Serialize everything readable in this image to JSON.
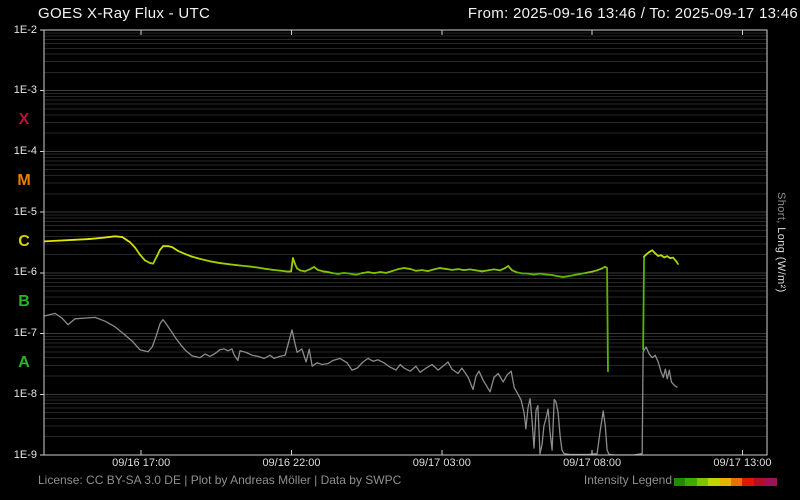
{
  "header": {
    "title": "GOES X-Ray Flux - UTC",
    "range_label": "From: 2025-09-16 13:46  /  To: 2025-09-17 13:46"
  },
  "footer": {
    "license": "License: CC BY-SA 3.0 DE | Plot by Andreas Möller | Data by SWPC",
    "legend_label": "Intensity Legend"
  },
  "axes": {
    "y_tick_labels": [
      "1E-2",
      "1E-3",
      "1E-4",
      "1E-5",
      "1E-6",
      "1E-7",
      "1E-8",
      "1E-9"
    ],
    "class_labels": [
      {
        "text": "X",
        "color": "#b5123c"
      },
      {
        "text": "M",
        "color": "#ee7f00"
      },
      {
        "text": "C",
        "color": "#d2d200"
      },
      {
        "text": "B",
        "color": "#2ab32a"
      },
      {
        "text": "A",
        "color": "#2ab32a"
      }
    ],
    "x_ticks": [
      {
        "label": "09/16 17:00",
        "hours": 3.233
      },
      {
        "label": "09/16 22:00",
        "hours": 8.233
      },
      {
        "label": "09/17 03:00",
        "hours": 13.233
      },
      {
        "label": "09/17 08:00",
        "hours": 18.233
      },
      {
        "label": "09/17 13:00",
        "hours": 23.233
      }
    ],
    "right_label_parts": [
      {
        "text": "Short, ",
        "color": "#8f8f8f"
      },
      {
        "text": "Long (W/m²)",
        "color": "#dcdcdc"
      }
    ]
  },
  "legend_colors": [
    "#1f8c00",
    "#3daa00",
    "#7cc400",
    "#c2d400",
    "#e6b400",
    "#e87200",
    "#dc1800",
    "#b30f24",
    "#a01257"
  ],
  "chart_data": {
    "type": "line",
    "title": "GOES X-Ray Flux - UTC",
    "x_unit": "hours since 2025-09-16 13:46 UTC",
    "x_range": [
      0,
      24.05
    ],
    "y_scale": "log",
    "y_range": [
      1e-09,
      0.01
    ],
    "grid": "horizontal log minor+major",
    "series": [
      {
        "name": "Long",
        "color_mode": "intensity-colormap",
        "colormap": [
          {
            "max_log": -7.0,
            "color": "#2d9e00"
          },
          {
            "max_log": -6.0,
            "color": "#5ab400"
          },
          {
            "max_log": -5.88,
            "color": "#84c400"
          },
          {
            "max_log": -5.76,
            "color": "#a2d000"
          },
          {
            "max_log": -5.62,
            "color": "#c0da00"
          },
          {
            "max_log": -5.48,
            "color": "#d4e000"
          },
          {
            "max_log": 0,
            "color": "#e2e600"
          }
        ],
        "points": [
          [
            0,
            3.3e-06
          ],
          [
            0.5,
            3.4e-06
          ],
          [
            1.0,
            3.5e-06
          ],
          [
            1.5,
            3.6e-06
          ],
          [
            2.0,
            3.8e-06
          ],
          [
            2.36,
            4e-06
          ],
          [
            2.6,
            3.9e-06
          ],
          [
            2.86,
            3.2e-06
          ],
          [
            3.03,
            2.6e-06
          ],
          [
            3.19,
            2e-06
          ],
          [
            3.36,
            1.6e-06
          ],
          [
            3.53,
            1.45e-06
          ],
          [
            3.63,
            1.42e-06
          ],
          [
            3.76,
            1.9e-06
          ],
          [
            3.86,
            2.4e-06
          ],
          [
            3.96,
            2.75e-06
          ],
          [
            4.13,
            2.75e-06
          ],
          [
            4.26,
            2.65e-06
          ],
          [
            4.46,
            2.3e-06
          ],
          [
            4.69,
            2.05e-06
          ],
          [
            4.92,
            1.85e-06
          ],
          [
            5.19,
            1.7e-06
          ],
          [
            5.52,
            1.55e-06
          ],
          [
            5.85,
            1.45e-06
          ],
          [
            6.19,
            1.38e-06
          ],
          [
            6.52,
            1.32e-06
          ],
          [
            6.85,
            1.27e-06
          ],
          [
            7.12,
            1.22e-06
          ],
          [
            7.39,
            1.16e-06
          ],
          [
            7.62,
            1.12e-06
          ],
          [
            7.85,
            1.09e-06
          ],
          [
            8.12,
            1.05e-06
          ],
          [
            8.22,
            1.06e-06
          ],
          [
            8.28,
            1.75e-06
          ],
          [
            8.35,
            1.4e-06
          ],
          [
            8.42,
            1.18e-06
          ],
          [
            8.52,
            1.1e-06
          ],
          [
            8.68,
            1.06e-06
          ],
          [
            8.85,
            1.15e-06
          ],
          [
            8.98,
            1.25e-06
          ],
          [
            9.11,
            1.12e-06
          ],
          [
            9.28,
            1.06e-06
          ],
          [
            9.45,
            1.03e-06
          ],
          [
            9.61,
            9.9e-07
          ],
          [
            9.78,
            9.6e-07
          ],
          [
            9.98,
            1e-06
          ],
          [
            10.18,
            9.7e-07
          ],
          [
            10.38,
            9.3e-07
          ],
          [
            10.58,
            9.9e-07
          ],
          [
            10.78,
            1.03e-06
          ],
          [
            10.98,
            9.9e-07
          ],
          [
            11.18,
            1.03e-06
          ],
          [
            11.38,
            1e-06
          ],
          [
            11.58,
            1.07e-06
          ],
          [
            11.78,
            1.15e-06
          ],
          [
            11.98,
            1.2e-06
          ],
          [
            12.18,
            1.16e-06
          ],
          [
            12.37,
            1.08e-06
          ],
          [
            12.57,
            1.11e-06
          ],
          [
            12.77,
            1.07e-06
          ],
          [
            12.97,
            1.14e-06
          ],
          [
            13.17,
            1.2e-06
          ],
          [
            13.37,
            1.16e-06
          ],
          [
            13.57,
            1.12e-06
          ],
          [
            13.77,
            1.15e-06
          ],
          [
            13.97,
            1.11e-06
          ],
          [
            14.17,
            1.14e-06
          ],
          [
            14.37,
            1.1e-06
          ],
          [
            14.57,
            1.06e-06
          ],
          [
            14.77,
            1.1e-06
          ],
          [
            14.97,
            1.14e-06
          ],
          [
            15.17,
            1.1e-06
          ],
          [
            15.34,
            1.2e-06
          ],
          [
            15.44,
            1.3e-06
          ],
          [
            15.57,
            1.1e-06
          ],
          [
            15.73,
            1.02e-06
          ],
          [
            15.9,
            9.8e-07
          ],
          [
            16.1,
            9.7e-07
          ],
          [
            16.3,
            9.4e-07
          ],
          [
            16.5,
            9.7e-07
          ],
          [
            16.7,
            9.4e-07
          ],
          [
            16.9,
            9.2e-07
          ],
          [
            17.1,
            8.8e-07
          ],
          [
            17.26,
            8.5e-07
          ],
          [
            17.43,
            8.8e-07
          ],
          [
            17.63,
            9.2e-07
          ],
          [
            17.83,
            9.6e-07
          ],
          [
            18.03,
            1e-06
          ],
          [
            18.23,
            1.05e-06
          ],
          [
            18.4,
            1.1e-06
          ],
          [
            18.56,
            1.18e-06
          ],
          [
            18.66,
            1.26e-06
          ],
          [
            18.73,
            1.2e-06
          ],
          [
            18.76,
            2.4e-08
          ],
          null,
          [
            19.93,
            5.5e-08
          ],
          [
            19.96,
            1.85e-06
          ],
          [
            20.03,
            2e-06
          ],
          [
            20.13,
            2.2e-06
          ],
          [
            20.23,
            2.35e-06
          ],
          [
            20.33,
            2.1e-06
          ],
          [
            20.43,
            1.9e-06
          ],
          [
            20.53,
            1.95e-06
          ],
          [
            20.63,
            1.8e-06
          ],
          [
            20.73,
            1.88e-06
          ],
          [
            20.83,
            1.75e-06
          ],
          [
            20.93,
            1.78e-06
          ],
          [
            21.03,
            1.55e-06
          ],
          [
            21.09,
            1.4e-06
          ]
        ]
      },
      {
        "name": "Short",
        "color": "#8c8c8c",
        "points": [
          [
            0,
            1.95e-07
          ],
          [
            0.37,
            2.15e-07
          ],
          [
            0.6,
            1.8e-07
          ],
          [
            0.8,
            1.4e-07
          ],
          [
            1.03,
            1.75e-07
          ],
          [
            1.36,
            1.8e-07
          ],
          [
            1.7,
            1.85e-07
          ],
          [
            2.03,
            1.6e-07
          ],
          [
            2.36,
            1.3e-07
          ],
          [
            2.69,
            9.5e-08
          ],
          [
            2.96,
            7.3e-08
          ],
          [
            3.19,
            5.4e-08
          ],
          [
            3.46,
            5e-08
          ],
          [
            3.6,
            6e-08
          ],
          [
            3.73,
            9e-08
          ],
          [
            3.86,
            1.45e-07
          ],
          [
            3.96,
            1.7e-07
          ],
          [
            4.06,
            1.45e-07
          ],
          [
            4.2,
            1.15e-07
          ],
          [
            4.36,
            8.7e-08
          ],
          [
            4.56,
            6.4e-08
          ],
          [
            4.72,
            5.2e-08
          ],
          [
            4.92,
            4.3e-08
          ],
          [
            5.19,
            4e-08
          ],
          [
            5.36,
            4.6e-08
          ],
          [
            5.52,
            4.2e-08
          ],
          [
            5.69,
            4.7e-08
          ],
          [
            5.85,
            5.4e-08
          ],
          [
            5.99,
            5.6e-08
          ],
          [
            6.12,
            5.2e-08
          ],
          [
            6.25,
            5.6e-08
          ],
          [
            6.32,
            4.5e-08
          ],
          [
            6.45,
            3.6e-08
          ],
          [
            6.52,
            5.2e-08
          ],
          [
            6.72,
            4.9e-08
          ],
          [
            6.92,
            4.4e-08
          ],
          [
            7.12,
            4.2e-08
          ],
          [
            7.32,
            3.9e-08
          ],
          [
            7.52,
            4.4e-08
          ],
          [
            7.65,
            3.9e-08
          ],
          [
            7.85,
            4.2e-08
          ],
          [
            8.02,
            4.4e-08
          ],
          [
            8.25,
            1.15e-07
          ],
          [
            8.35,
            6.8e-08
          ],
          [
            8.42,
            4.9e-08
          ],
          [
            8.58,
            5.6e-08
          ],
          [
            8.72,
            3.4e-08
          ],
          [
            8.82,
            5.5e-08
          ],
          [
            8.92,
            2.9e-08
          ],
          [
            9.08,
            3.3e-08
          ],
          [
            9.25,
            3.1e-08
          ],
          [
            9.45,
            3.2e-08
          ],
          [
            9.61,
            3.6e-08
          ],
          [
            9.85,
            3.9e-08
          ],
          [
            10.08,
            3.3e-08
          ],
          [
            10.25,
            2.5e-08
          ],
          [
            10.42,
            2.7e-08
          ],
          [
            10.61,
            3.4e-08
          ],
          [
            10.78,
            3.9e-08
          ],
          [
            10.95,
            3.5e-08
          ],
          [
            11.11,
            3.7e-08
          ],
          [
            11.31,
            3.3e-08
          ],
          [
            11.51,
            2.8e-08
          ],
          [
            11.71,
            2.5e-08
          ],
          [
            11.85,
            3.1e-08
          ],
          [
            11.98,
            2.7e-08
          ],
          [
            12.18,
            2.4e-08
          ],
          [
            12.37,
            2.9e-08
          ],
          [
            12.51,
            2.3e-08
          ],
          [
            12.71,
            2.7e-08
          ],
          [
            12.91,
            3.1e-08
          ],
          [
            13.11,
            2.5e-08
          ],
          [
            13.31,
            3e-08
          ],
          [
            13.44,
            3.4e-08
          ],
          [
            13.57,
            2.6e-08
          ],
          [
            13.77,
            2.2e-08
          ],
          [
            13.9,
            2.7e-08
          ],
          [
            14.11,
            1.9e-08
          ],
          [
            14.27,
            1.2e-08
          ],
          [
            14.37,
            2e-08
          ],
          [
            14.47,
            2.4e-08
          ],
          [
            14.61,
            1.7e-08
          ],
          [
            14.84,
            1.1e-08
          ],
          [
            14.97,
            1.9e-08
          ],
          [
            15.11,
            2.2e-08
          ],
          [
            15.27,
            1.6e-08
          ],
          [
            15.41,
            2.1e-08
          ],
          [
            15.54,
            2.4e-08
          ],
          [
            15.64,
            1.3e-08
          ],
          [
            15.77,
            1e-08
          ],
          [
            15.87,
            8e-09
          ],
          [
            15.97,
            5e-09
          ],
          [
            16.03,
            2.7e-09
          ],
          [
            16.1,
            6e-09
          ],
          [
            16.17,
            8.5e-09
          ],
          [
            16.23,
            4e-09
          ],
          [
            16.3,
            1.3e-09
          ],
          [
            16.37,
            5.5e-09
          ],
          [
            16.43,
            6.5e-09
          ],
          [
            16.5,
            1.05e-09
          ],
          [
            16.57,
            1.5e-09
          ],
          [
            16.63,
            3e-09
          ],
          [
            16.7,
            4e-09
          ],
          [
            16.77,
            5.7e-09
          ],
          [
            16.83,
            2.5e-09
          ],
          [
            16.9,
            1.2e-09
          ],
          [
            16.97,
            8.2e-09
          ],
          [
            17.03,
            7.5e-09
          ],
          [
            17.1,
            5e-09
          ],
          [
            17.17,
            2e-09
          ],
          [
            17.23,
            1.2e-09
          ],
          [
            17.3,
            1.05e-09
          ],
          [
            17.5,
            1.02e-09
          ],
          [
            17.8,
            1.02e-09
          ],
          [
            18.1,
            1.02e-09
          ],
          [
            18.4,
            1.05e-09
          ],
          [
            18.5,
            2.5e-09
          ],
          [
            18.6,
            5.3e-09
          ],
          [
            18.67,
            3e-09
          ],
          [
            18.73,
            1.2e-09
          ],
          [
            18.8,
            1.02e-09
          ],
          [
            19.0,
            1e-09
          ],
          [
            19.3,
            1e-09
          ],
          [
            19.6,
            1e-09
          ],
          [
            19.9,
            1.05e-09
          ],
          [
            19.93,
            5e-08
          ],
          [
            20.03,
            6e-08
          ],
          [
            20.13,
            4.6e-08
          ],
          [
            20.23,
            4e-08
          ],
          [
            20.33,
            4.4e-08
          ],
          [
            20.43,
            3.4e-08
          ],
          [
            20.53,
            2.3e-08
          ],
          [
            20.6,
            1.9e-08
          ],
          [
            20.67,
            2.6e-08
          ],
          [
            20.73,
            1.8e-08
          ],
          [
            20.8,
            2.5e-08
          ],
          [
            20.87,
            1.6e-08
          ],
          [
            20.97,
            1.4e-08
          ],
          [
            21.07,
            1.3e-08
          ]
        ]
      }
    ]
  }
}
